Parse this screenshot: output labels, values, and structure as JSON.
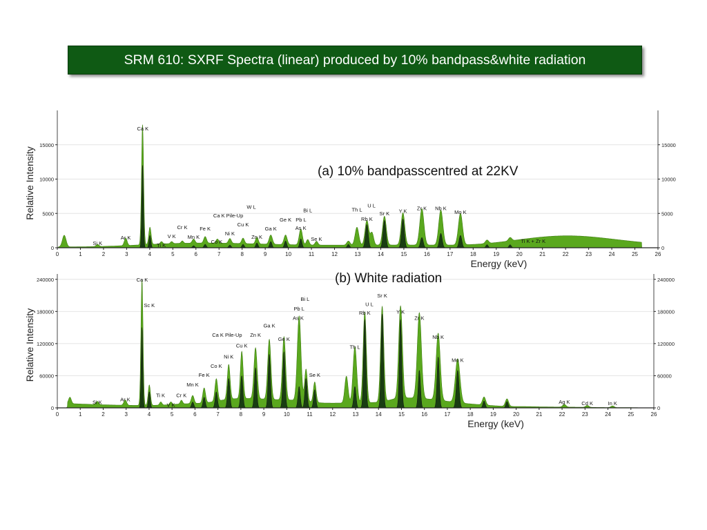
{
  "page": {
    "title": "SRM 610: SXRF Spectra (linear) produced by 10% bandpass&white radiation",
    "colors": {
      "banner": "#0f5a14",
      "fill_light": "#5aa81e",
      "fill_dark": "#0e2a10",
      "line": "#111111"
    }
  },
  "chart_data": [
    {
      "type": "area",
      "name": "panel-a",
      "caption": "(a) 10% bandpasscentred at 22KV",
      "xlabel": "Energy (keV)",
      "ylabel": "Relative Intensity",
      "xlim": [
        0,
        26
      ],
      "ylim": [
        0,
        20000
      ],
      "xticks": [
        0,
        1,
        2,
        3,
        4,
        5,
        6,
        7,
        8,
        9,
        10,
        11,
        12,
        13,
        14,
        15,
        16,
        17,
        18,
        19,
        20,
        21,
        22,
        23,
        24,
        25,
        26
      ],
      "yticks": [
        0,
        5000,
        10000,
        15000
      ],
      "grid": true,
      "background": {
        "sigma": 1.6,
        "points": [
          [
            0.1,
            50
          ],
          [
            1,
            150
          ],
          [
            3,
            250
          ],
          [
            5,
            500
          ],
          [
            6,
            1000
          ],
          [
            7,
            600
          ],
          [
            9,
            450
          ],
          [
            12,
            350
          ],
          [
            14,
            400
          ],
          [
            16,
            450
          ],
          [
            18,
            250
          ],
          [
            20,
            400
          ],
          [
            21,
            1500
          ],
          [
            22,
            3000
          ],
          [
            23,
            2200
          ],
          [
            24,
            700
          ],
          [
            25,
            80
          ]
        ]
      },
      "peaks": [
        {
          "e": 0.3,
          "h": 1700,
          "w": 0.08
        },
        {
          "e": 1.74,
          "h": 300,
          "w": 0.06
        },
        {
          "e": 2.96,
          "h": 1100,
          "w": 0.06
        },
        {
          "e": 3.69,
          "h": 17500,
          "w": 0.045
        },
        {
          "e": 4.01,
          "h": 2500,
          "w": 0.05
        },
        {
          "e": 4.51,
          "h": 350,
          "w": 0.05
        },
        {
          "e": 4.95,
          "h": 300,
          "w": 0.05
        },
        {
          "e": 5.41,
          "h": 350,
          "w": 0.05
        },
        {
          "e": 5.9,
          "h": 600,
          "w": 0.06
        },
        {
          "e": 6.4,
          "h": 950,
          "w": 0.06
        },
        {
          "e": 6.93,
          "h": 600,
          "w": 0.06
        },
        {
          "e": 7.47,
          "h": 700,
          "w": 0.06
        },
        {
          "e": 8.04,
          "h": 800,
          "w": 0.06
        },
        {
          "e": 8.64,
          "h": 1000,
          "w": 0.06
        },
        {
          "e": 9.24,
          "h": 1350,
          "w": 0.07
        },
        {
          "e": 9.88,
          "h": 1400,
          "w": 0.07
        },
        {
          "e": 10.54,
          "h": 2300,
          "w": 0.07
        },
        {
          "e": 10.84,
          "h": 800,
          "w": 0.06
        },
        {
          "e": 11.22,
          "h": 550,
          "w": 0.06
        },
        {
          "e": 12.6,
          "h": 600,
          "w": 0.07
        },
        {
          "e": 12.97,
          "h": 2600,
          "w": 0.08
        },
        {
          "e": 13.4,
          "h": 3600,
          "w": 0.08
        },
        {
          "e": 13.62,
          "h": 1800,
          "w": 0.07
        },
        {
          "e": 14.16,
          "h": 4200,
          "w": 0.08
        },
        {
          "e": 14.96,
          "h": 4700,
          "w": 0.08
        },
        {
          "e": 15.78,
          "h": 5300,
          "w": 0.09
        },
        {
          "e": 16.6,
          "h": 5100,
          "w": 0.09
        },
        {
          "e": 17.45,
          "h": 4600,
          "w": 0.09
        },
        {
          "e": 18.6,
          "h": 500,
          "w": 0.07
        },
        {
          "e": 19.6,
          "h": 500,
          "w": 0.07
        }
      ],
      "dark_peaks": [
        {
          "e": 3.69,
          "h": 12000,
          "w": 0.035
        },
        {
          "e": 4.01,
          "h": 1800,
          "w": 0.04
        },
        {
          "e": 5.9,
          "h": 300,
          "w": 0.05
        },
        {
          "e": 6.4,
          "h": 500,
          "w": 0.05
        },
        {
          "e": 7.47,
          "h": 400,
          "w": 0.05
        },
        {
          "e": 8.04,
          "h": 500,
          "w": 0.05
        },
        {
          "e": 8.64,
          "h": 700,
          "w": 0.05
        },
        {
          "e": 9.24,
          "h": 900,
          "w": 0.05
        },
        {
          "e": 9.88,
          "h": 1000,
          "w": 0.05
        },
        {
          "e": 10.54,
          "h": 1300,
          "w": 0.05
        },
        {
          "e": 12.6,
          "h": 500,
          "w": 0.05
        },
        {
          "e": 13.4,
          "h": 3400,
          "w": 0.06
        },
        {
          "e": 14.16,
          "h": 4000,
          "w": 0.06
        },
        {
          "e": 14.96,
          "h": 4200,
          "w": 0.06
        },
        {
          "e": 15.78,
          "h": 1500,
          "w": 0.06
        },
        {
          "e": 16.6,
          "h": 2100,
          "w": 0.06
        },
        {
          "e": 17.45,
          "h": 1800,
          "w": 0.06
        },
        {
          "e": 18.6,
          "h": 450,
          "w": 0.05
        },
        {
          "e": 19.6,
          "h": 450,
          "w": 0.05
        }
      ],
      "annotations": [
        {
          "text": "Ca K",
          "x": 3.7,
          "y": 17100
        },
        {
          "text": "Si K",
          "x": 1.74,
          "y": 400
        },
        {
          "text": "Ar K",
          "x": 2.96,
          "y": 1200
        },
        {
          "text": "Ti K",
          "x": 4.5,
          "y": 100
        },
        {
          "text": "V K",
          "x": 4.95,
          "y": 1400
        },
        {
          "text": "Cr K",
          "x": 5.41,
          "y": 2700
        },
        {
          "text": "Mn K",
          "x": 5.9,
          "y": 1300
        },
        {
          "text": "Fe K",
          "x": 6.4,
          "y": 2500
        },
        {
          "text": "Co K",
          "x": 6.9,
          "y": 600
        },
        {
          "text": "Ca K Pile-Up",
          "x": 7.4,
          "y": 4400
        },
        {
          "text": "Ni K",
          "x": 7.47,
          "y": 1800
        },
        {
          "text": "Cu K",
          "x": 8.04,
          "y": 3100
        },
        {
          "text": "W L",
          "x": 8.4,
          "y": 5700
        },
        {
          "text": "Zn K",
          "x": 8.64,
          "y": 1300
        },
        {
          "text": "Ga K",
          "x": 9.24,
          "y": 2500
        },
        {
          "text": "Ge K",
          "x": 9.88,
          "y": 3800
        },
        {
          "text": "Pb L",
          "x": 10.55,
          "y": 3800
        },
        {
          "text": "Bi L",
          "x": 10.84,
          "y": 5200
        },
        {
          "text": "As K",
          "x": 10.54,
          "y": 2600
        },
        {
          "text": "Se K",
          "x": 11.22,
          "y": 1000
        },
        {
          "text": "Th L",
          "x": 12.97,
          "y": 5300
        },
        {
          "text": "U L",
          "x": 13.6,
          "y": 5900
        },
        {
          "text": "Rb K",
          "x": 13.4,
          "y": 3900
        },
        {
          "text": "Sr K",
          "x": 14.16,
          "y": 4700
        },
        {
          "text": "Y K",
          "x": 14.96,
          "y": 5100
        },
        {
          "text": "Zr K",
          "x": 15.78,
          "y": 5500
        },
        {
          "text": "Nb K",
          "x": 16.6,
          "y": 5500
        },
        {
          "text": "Mo K",
          "x": 17.45,
          "y": 4900
        },
        {
          "text": "Ti K + Zr K",
          "x": 20.6,
          "y": 700
        }
      ]
    },
    {
      "type": "area",
      "name": "panel-b",
      "caption": "(b) White radiation",
      "xlabel": "Energy (keV)",
      "ylabel": "Relative Intensity",
      "xlim": [
        0,
        26
      ],
      "ylim": [
        0,
        250000
      ],
      "xticks": [
        0,
        1,
        2,
        3,
        4,
        5,
        6,
        7,
        8,
        9,
        10,
        11,
        12,
        13,
        14,
        15,
        16,
        17,
        18,
        19,
        20,
        21,
        22,
        23,
        24,
        25,
        26
      ],
      "yticks": [
        0,
        60000,
        120000,
        180000,
        240000
      ],
      "grid": true,
      "background": {
        "sigma": 0.8,
        "points": [
          [
            0.5,
            10000
          ],
          [
            1,
            6000
          ],
          [
            2,
            5000
          ],
          [
            4,
            4500
          ],
          [
            6,
            8000
          ],
          [
            8,
            18000
          ],
          [
            10,
            15000
          ],
          [
            12,
            8000
          ],
          [
            13,
            10000
          ],
          [
            16,
            20000
          ],
          [
            17,
            12000
          ],
          [
            18,
            5000
          ],
          [
            20,
            2500
          ],
          [
            22,
            1500
          ],
          [
            24,
            800
          ],
          [
            25,
            300
          ]
        ]
      },
      "peaks": [
        {
          "e": 0.55,
          "h": 12000,
          "w": 0.06
        },
        {
          "e": 1.74,
          "h": 6000,
          "w": 0.06
        },
        {
          "e": 2.96,
          "h": 10000,
          "w": 0.06
        },
        {
          "e": 3.69,
          "h": 234000,
          "w": 0.045
        },
        {
          "e": 4.01,
          "h": 38000,
          "w": 0.05
        },
        {
          "e": 4.51,
          "h": 6000,
          "w": 0.05
        },
        {
          "e": 4.95,
          "h": 5000,
          "w": 0.05
        },
        {
          "e": 5.41,
          "h": 7000,
          "w": 0.05
        },
        {
          "e": 5.9,
          "h": 15000,
          "w": 0.06
        },
        {
          "e": 6.4,
          "h": 28000,
          "w": 0.06
        },
        {
          "e": 6.93,
          "h": 42000,
          "w": 0.06
        },
        {
          "e": 7.47,
          "h": 65000,
          "w": 0.06
        },
        {
          "e": 8.04,
          "h": 88000,
          "w": 0.06
        },
        {
          "e": 8.64,
          "h": 95000,
          "w": 0.07
        },
        {
          "e": 9.24,
          "h": 112000,
          "w": 0.07
        },
        {
          "e": 9.88,
          "h": 118000,
          "w": 0.07
        },
        {
          "e": 10.54,
          "h": 158000,
          "w": 0.08
        },
        {
          "e": 10.84,
          "h": 60000,
          "w": 0.06
        },
        {
          "e": 11.22,
          "h": 38000,
          "w": 0.06
        },
        {
          "e": 12.6,
          "h": 50000,
          "w": 0.07
        },
        {
          "e": 12.97,
          "h": 105000,
          "w": 0.08
        },
        {
          "e": 13.4,
          "h": 170000,
          "w": 0.07
        },
        {
          "e": 14.16,
          "h": 178000,
          "w": 0.07
        },
        {
          "e": 14.96,
          "h": 172000,
          "w": 0.08
        },
        {
          "e": 15.78,
          "h": 160000,
          "w": 0.09
        },
        {
          "e": 16.6,
          "h": 125000,
          "w": 0.09
        },
        {
          "e": 17.45,
          "h": 82000,
          "w": 0.1
        },
        {
          "e": 18.6,
          "h": 15000,
          "w": 0.07
        },
        {
          "e": 19.6,
          "h": 14000,
          "w": 0.07
        },
        {
          "e": 22.1,
          "h": 5000,
          "w": 0.07
        },
        {
          "e": 23.1,
          "h": 3500,
          "w": 0.07
        },
        {
          "e": 24.2,
          "h": 3000,
          "w": 0.07
        }
      ],
      "dark_peaks": [
        {
          "e": 3.69,
          "h": 150000,
          "w": 0.035
        },
        {
          "e": 4.01,
          "h": 30000,
          "w": 0.04
        },
        {
          "e": 5.9,
          "h": 11000,
          "w": 0.05
        },
        {
          "e": 6.4,
          "h": 20000,
          "w": 0.05
        },
        {
          "e": 6.93,
          "h": 30000,
          "w": 0.05
        },
        {
          "e": 7.47,
          "h": 55000,
          "w": 0.05
        },
        {
          "e": 8.04,
          "h": 60000,
          "w": 0.05
        },
        {
          "e": 8.64,
          "h": 75000,
          "w": 0.05
        },
        {
          "e": 9.24,
          "h": 100000,
          "w": 0.05
        },
        {
          "e": 9.88,
          "h": 105000,
          "w": 0.05
        },
        {
          "e": 10.54,
          "h": 40000,
          "w": 0.05
        },
        {
          "e": 10.84,
          "h": 55000,
          "w": 0.05
        },
        {
          "e": 11.22,
          "h": 34000,
          "w": 0.05
        },
        {
          "e": 12.97,
          "h": 40000,
          "w": 0.05
        },
        {
          "e": 13.4,
          "h": 165000,
          "w": 0.05
        },
        {
          "e": 14.16,
          "h": 175000,
          "w": 0.05
        },
        {
          "e": 14.96,
          "h": 165000,
          "w": 0.05
        },
        {
          "e": 15.78,
          "h": 70000,
          "w": 0.05
        },
        {
          "e": 16.6,
          "h": 95000,
          "w": 0.05
        },
        {
          "e": 17.45,
          "h": 70000,
          "w": 0.06
        },
        {
          "e": 18.6,
          "h": 13000,
          "w": 0.05
        },
        {
          "e": 19.6,
          "h": 12000,
          "w": 0.05
        }
      ],
      "annotations": [
        {
          "text": "Ca K",
          "x": 3.7,
          "y": 236000
        },
        {
          "text": "Sc K",
          "x": 4.01,
          "y": 188000
        },
        {
          "text": "Si K",
          "x": 1.74,
          "y": 7000
        },
        {
          "text": "Ar K",
          "x": 2.96,
          "y": 12000
        },
        {
          "text": "Ti K",
          "x": 4.5,
          "y": 20000
        },
        {
          "text": "V K",
          "x": 4.95,
          "y": 2000
        },
        {
          "text": "Cr K",
          "x": 5.41,
          "y": 20000
        },
        {
          "text": "Mn K",
          "x": 5.9,
          "y": 40000
        },
        {
          "text": "Fe K",
          "x": 6.4,
          "y": 58000
        },
        {
          "text": "Co K",
          "x": 6.93,
          "y": 75000
        },
        {
          "text": "Ni K",
          "x": 7.47,
          "y": 92000
        },
        {
          "text": "Cu K",
          "x": 8.04,
          "y": 113000
        },
        {
          "text": "Ca K Pile-Up",
          "x": 7.4,
          "y": 133000
        },
        {
          "text": "Zn K",
          "x": 8.64,
          "y": 133000
        },
        {
          "text": "Ga K",
          "x": 9.24,
          "y": 150000
        },
        {
          "text": "Ge K",
          "x": 9.88,
          "y": 125000
        },
        {
          "text": "As K",
          "x": 10.5,
          "y": 164000
        },
        {
          "text": "Pb L",
          "x": 10.54,
          "y": 182000
        },
        {
          "text": "Bi L",
          "x": 10.8,
          "y": 200000
        },
        {
          "text": "Se K",
          "x": 11.22,
          "y": 58000
        },
        {
          "text": "Th L",
          "x": 12.97,
          "y": 110000
        },
        {
          "text": "Rb K",
          "x": 13.4,
          "y": 174000
        },
        {
          "text": "U L",
          "x": 13.6,
          "y": 190000
        },
        {
          "text": "Sr K",
          "x": 14.16,
          "y": 206000
        },
        {
          "text": "Y K",
          "x": 14.96,
          "y": 176000
        },
        {
          "text": "Zr K",
          "x": 15.78,
          "y": 164000
        },
        {
          "text": "Nb K",
          "x": 16.6,
          "y": 129000
        },
        {
          "text": "Mo K",
          "x": 17.45,
          "y": 86000
        },
        {
          "text": "Ag K",
          "x": 22.1,
          "y": 8000
        },
        {
          "text": "Cd K",
          "x": 23.1,
          "y": 5000
        },
        {
          "text": "In K",
          "x": 24.2,
          "y": 5000
        }
      ]
    }
  ]
}
